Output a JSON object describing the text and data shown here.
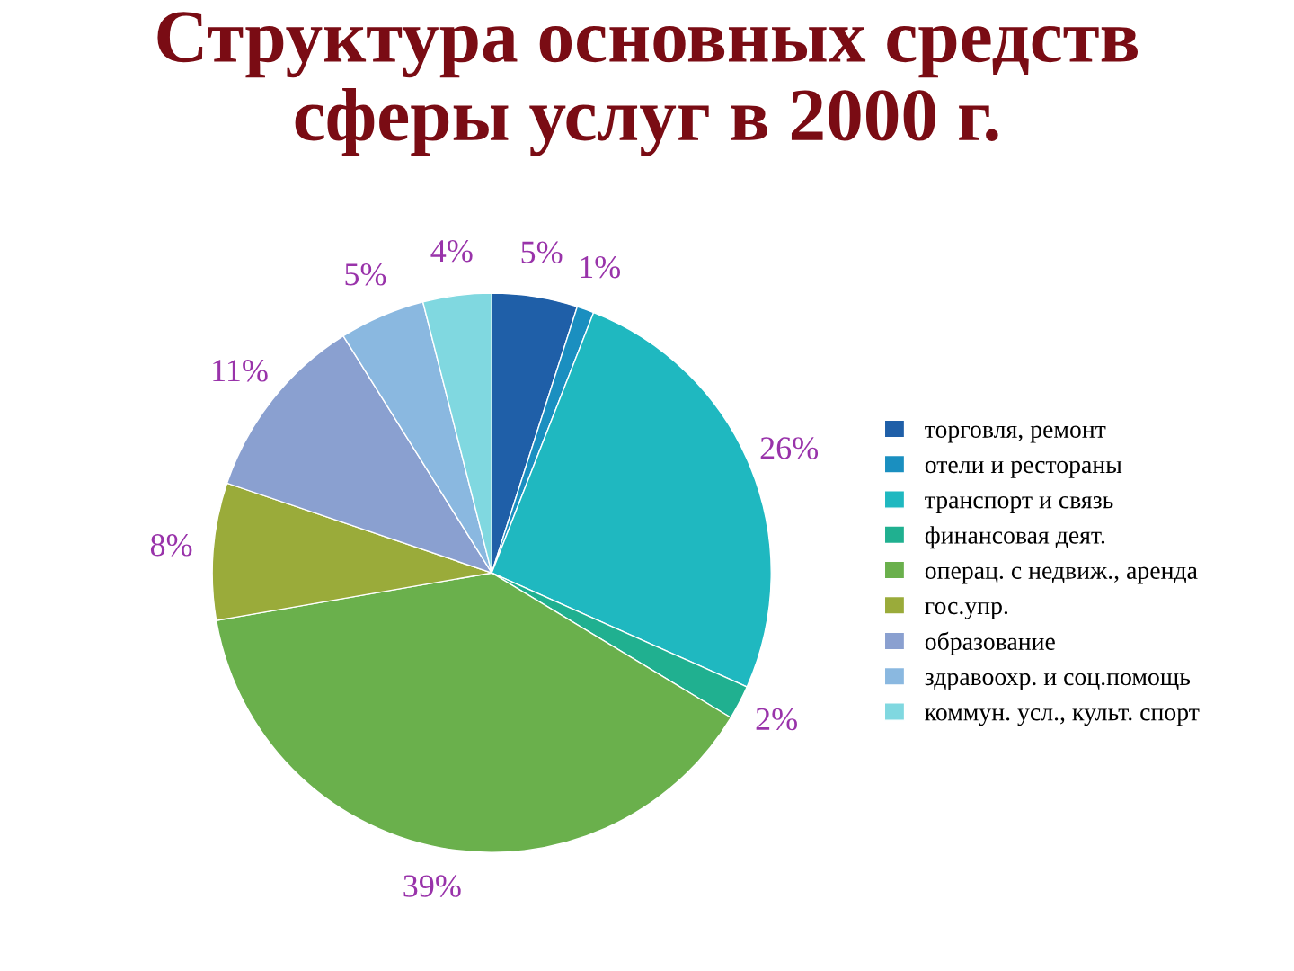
{
  "chart_data": {
    "type": "pie",
    "title": "Структура основных средств\nсферы услуг в 2000 г.",
    "categories": [
      "торговля, ремонт",
      "отели и рестораны",
      "транспорт и связь",
      "финансовая деят.",
      "операц. с недвиж., аренда",
      "гос.упр.",
      "образование",
      "здравоохр. и соц.помощь",
      "коммун. усл., культ. спорт"
    ],
    "values": [
      5,
      1,
      26,
      2,
      39,
      8,
      11,
      5,
      4
    ],
    "value_labels": [
      "5%",
      "1%",
      "26%",
      "2%",
      "39%",
      "8%",
      "11%",
      "5%",
      "4%"
    ],
    "colors": [
      "#1f5fa8",
      "#1a8fc0",
      "#1fb8c0",
      "#20b090",
      "#6ab04c",
      "#9aab3a",
      "#8aa0d0",
      "#8ab8e0",
      "#80d8e0"
    ],
    "legend": "right"
  }
}
